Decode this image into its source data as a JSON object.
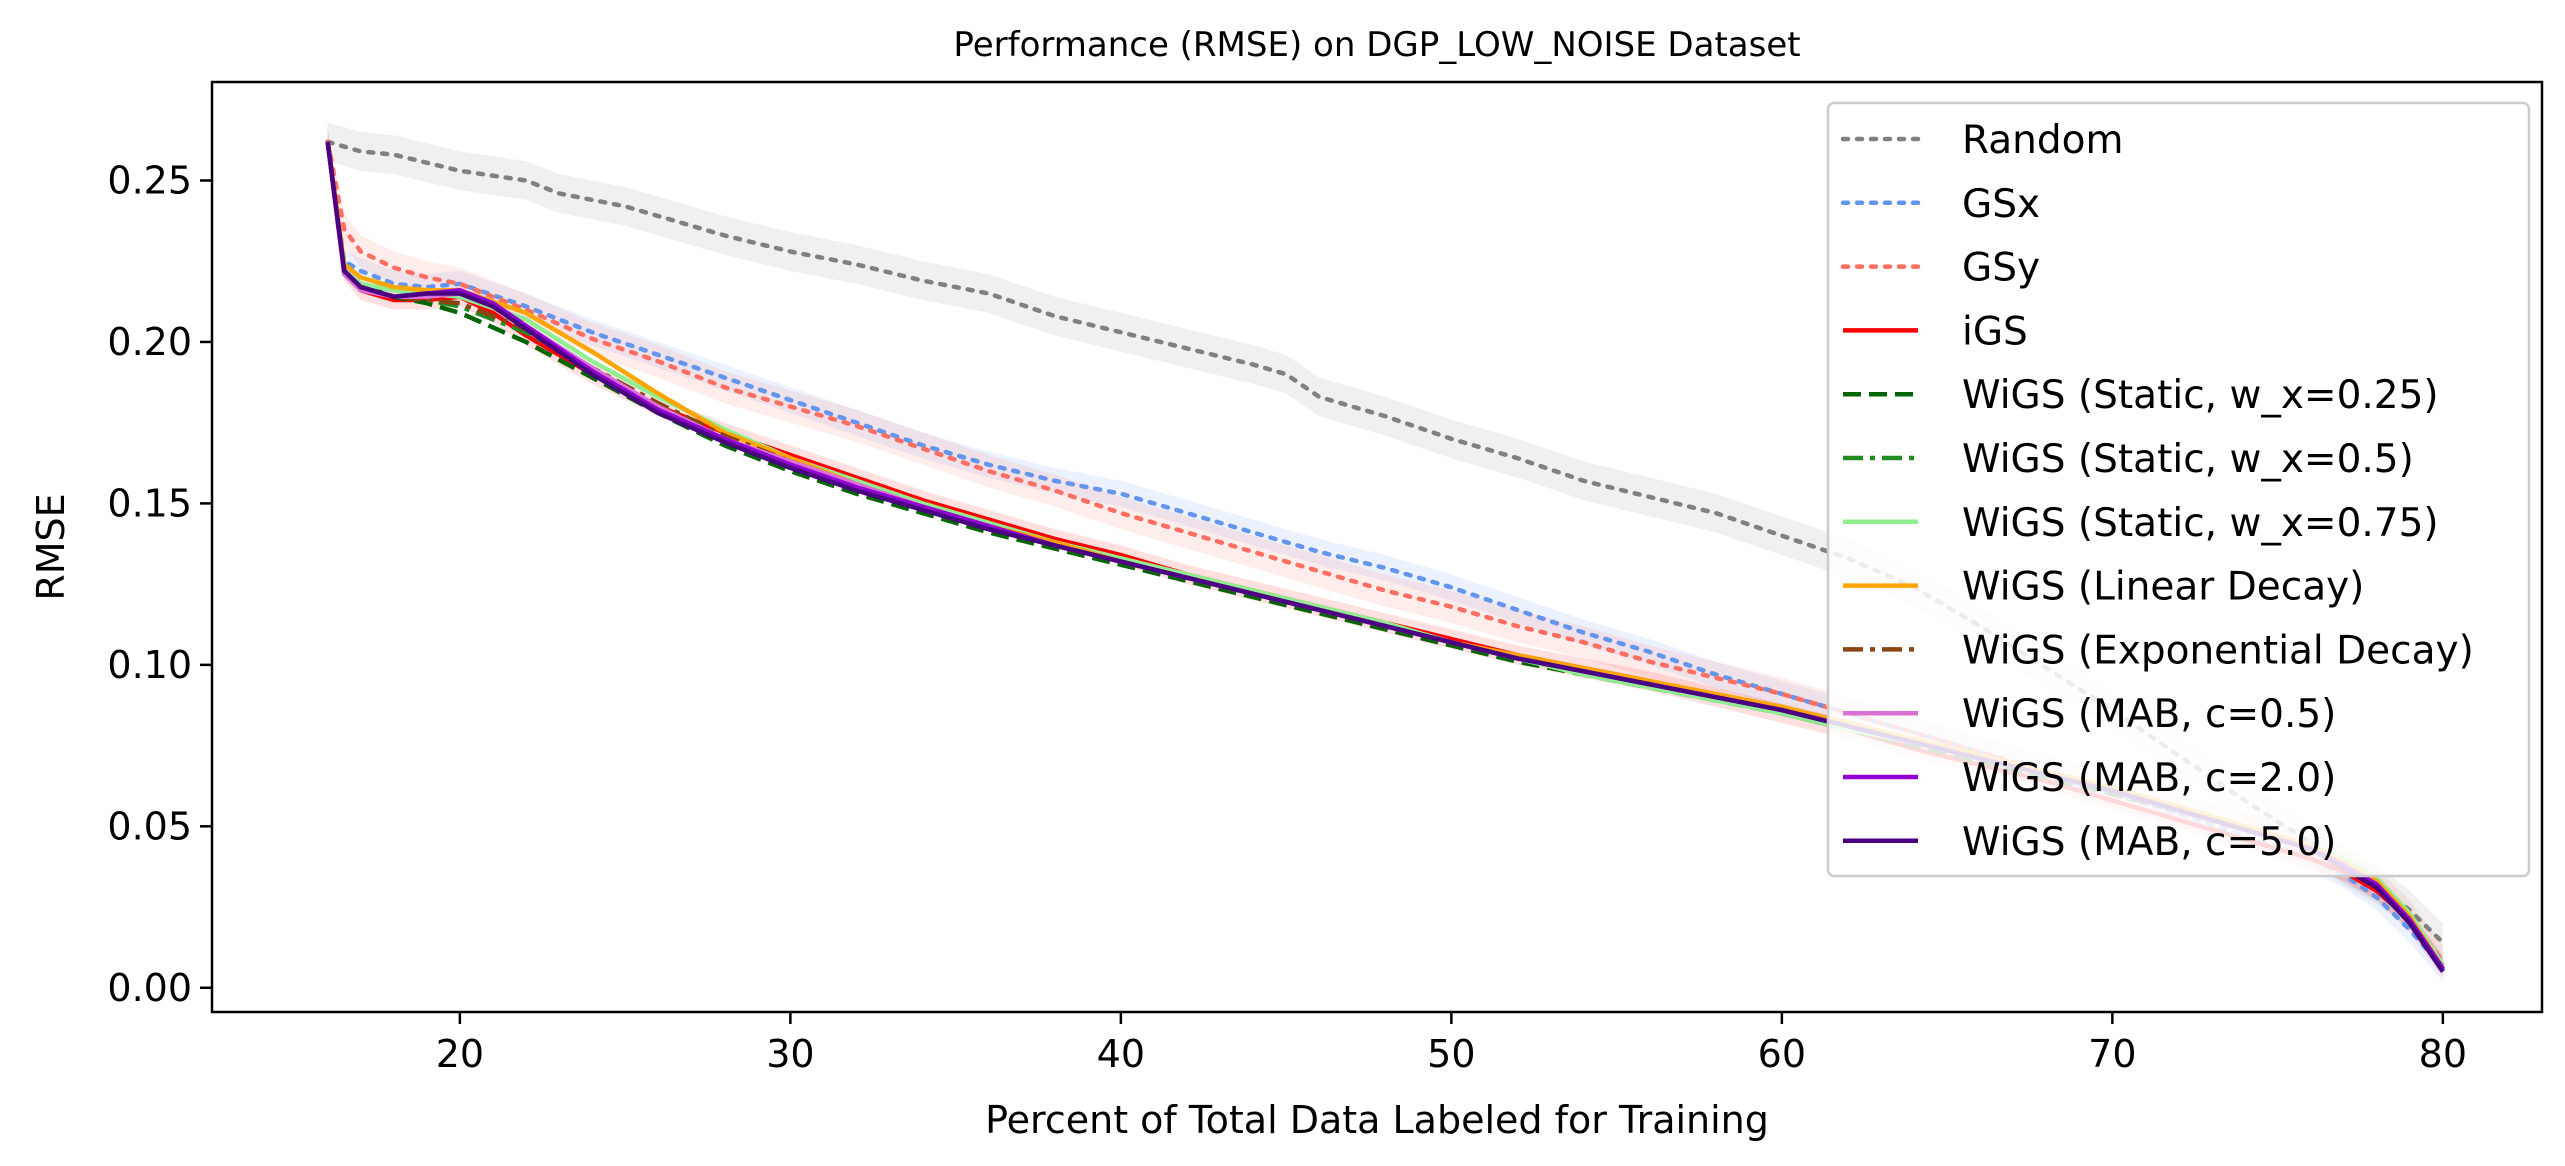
{
  "chart_data": {
    "type": "line",
    "title": "Performance (RMSE) on DGP_LOW_NOISE Dataset",
    "xlabel": "Percent of Total Data Labeled for Training",
    "ylabel": "RMSE",
    "xlim": [
      12.5,
      83
    ],
    "ylim": [
      -0.0075,
      0.2805
    ],
    "x_ticks": [
      20,
      30,
      40,
      50,
      60,
      70,
      80
    ],
    "x_tick_labels": [
      "20",
      "30",
      "40",
      "50",
      "60",
      "70",
      "80"
    ],
    "y_ticks": [
      0.0,
      0.05,
      0.1,
      0.15,
      0.2,
      0.25
    ],
    "y_tick_labels": [
      "0.00",
      "0.05",
      "0.10",
      "0.15",
      "0.20",
      "0.25"
    ],
    "grid": false,
    "legend_position": "upper right",
    "series": [
      {
        "name": "Random",
        "color": "#808080",
        "style": "dotted",
        "band": 0.006,
        "x": [
          16,
          17,
          18,
          20,
          22,
          23,
          25,
          26,
          28,
          30,
          32,
          34,
          36,
          38,
          40,
          42,
          44,
          45,
          46,
          48,
          50,
          52,
          54,
          56,
          58,
          60,
          62,
          64,
          66,
          68,
          70,
          72,
          74,
          76,
          77,
          78,
          79,
          79.5,
          80
        ],
        "y": [
          0.262,
          0.259,
          0.258,
          0.253,
          0.25,
          0.246,
          0.242,
          0.239,
          0.233,
          0.228,
          0.224,
          0.219,
          0.215,
          0.208,
          0.203,
          0.198,
          0.193,
          0.19,
          0.183,
          0.177,
          0.17,
          0.164,
          0.157,
          0.152,
          0.147,
          0.14,
          0.133,
          0.124,
          0.112,
          0.099,
          0.086,
          0.072,
          0.058,
          0.045,
          0.038,
          0.032,
          0.024,
          0.019,
          0.014
        ]
      },
      {
        "name": "GSx",
        "color": "#6495ED",
        "style": "dotted",
        "band": 0.004,
        "x": [
          16,
          16.5,
          17,
          18,
          19,
          20,
          22,
          24,
          26,
          28,
          30,
          32,
          34,
          36,
          38,
          40,
          42,
          44,
          46,
          48,
          50,
          52,
          54,
          56,
          58,
          60,
          62,
          64,
          66,
          68,
          70,
          72,
          74,
          76,
          77,
          78,
          79,
          80
        ],
        "y": [
          0.262,
          0.225,
          0.222,
          0.218,
          0.217,
          0.218,
          0.211,
          0.203,
          0.196,
          0.189,
          0.182,
          0.175,
          0.168,
          0.162,
          0.157,
          0.153,
          0.147,
          0.141,
          0.135,
          0.13,
          0.124,
          0.117,
          0.11,
          0.104,
          0.097,
          0.091,
          0.085,
          0.079,
          0.073,
          0.066,
          0.06,
          0.054,
          0.047,
          0.04,
          0.035,
          0.028,
          0.018,
          0.006
        ]
      },
      {
        "name": "GSy",
        "color": "#FF6F61",
        "style": "dotted",
        "band": 0.005,
        "x": [
          16,
          16.5,
          17,
          18,
          19,
          20,
          22,
          24,
          26,
          28,
          30,
          32,
          34,
          36,
          38,
          40,
          42,
          44,
          46,
          48,
          50,
          52,
          54,
          56,
          58,
          60,
          62,
          64,
          66,
          68,
          70,
          72,
          74,
          76,
          77,
          78,
          79,
          80
        ],
        "y": [
          0.262,
          0.235,
          0.228,
          0.223,
          0.22,
          0.218,
          0.21,
          0.201,
          0.194,
          0.186,
          0.18,
          0.174,
          0.167,
          0.16,
          0.154,
          0.147,
          0.141,
          0.135,
          0.129,
          0.123,
          0.118,
          0.112,
          0.107,
          0.101,
          0.096,
          0.091,
          0.085,
          0.079,
          0.073,
          0.067,
          0.061,
          0.055,
          0.049,
          0.043,
          0.038,
          0.032,
          0.022,
          0.008
        ]
      },
      {
        "name": "iGS",
        "color": "#FF0000",
        "style": "solid",
        "band": 0.003,
        "x": [
          16,
          16.5,
          17,
          18,
          19,
          20,
          21,
          22,
          24,
          26,
          28,
          30,
          32,
          34,
          36,
          38,
          40,
          42,
          44,
          46,
          48,
          50,
          52,
          54,
          56,
          58,
          60,
          62,
          64,
          66,
          68,
          70,
          72,
          74,
          76,
          77,
          78,
          79,
          80
        ],
        "y": [
          0.262,
          0.222,
          0.216,
          0.213,
          0.213,
          0.214,
          0.209,
          0.202,
          0.19,
          0.18,
          0.172,
          0.165,
          0.158,
          0.151,
          0.145,
          0.139,
          0.134,
          0.128,
          0.123,
          0.118,
          0.113,
          0.108,
          0.103,
          0.099,
          0.095,
          0.09,
          0.085,
          0.08,
          0.074,
          0.069,
          0.064,
          0.058,
          0.052,
          0.046,
          0.04,
          0.036,
          0.03,
          0.021,
          0.007
        ]
      },
      {
        "name": "WiGS (Static, w_x=0.25)",
        "color": "#006400",
        "style": "dashed",
        "band": 0,
        "x": [
          16,
          16.5,
          17,
          18,
          19,
          20,
          22,
          24,
          26,
          28,
          30,
          32,
          34,
          36,
          38,
          40,
          42,
          44,
          46,
          48,
          50,
          52,
          54,
          56,
          58,
          60,
          62,
          64,
          66,
          68,
          70,
          72,
          74,
          76,
          77,
          78,
          79,
          80
        ],
        "y": [
          0.262,
          0.222,
          0.218,
          0.214,
          0.212,
          0.209,
          0.2,
          0.189,
          0.178,
          0.168,
          0.16,
          0.153,
          0.147,
          0.141,
          0.136,
          0.131,
          0.126,
          0.121,
          0.116,
          0.111,
          0.106,
          0.101,
          0.097,
          0.093,
          0.089,
          0.085,
          0.08,
          0.075,
          0.07,
          0.065,
          0.06,
          0.055,
          0.049,
          0.043,
          0.038,
          0.032,
          0.022,
          0.007
        ]
      },
      {
        "name": "WiGS (Static, w_x=0.5)",
        "color": "#228B22",
        "style": "dashdot",
        "band": 0,
        "x": [
          16,
          16.5,
          17,
          18,
          19,
          20,
          22,
          24,
          26,
          28,
          30,
          32,
          34,
          36,
          38,
          40,
          42,
          44,
          46,
          48,
          50,
          52,
          54,
          56,
          58,
          60,
          62,
          64,
          66,
          68,
          70,
          72,
          74,
          76,
          77,
          78,
          79,
          80
        ],
        "y": [
          0.262,
          0.221,
          0.217,
          0.214,
          0.213,
          0.211,
          0.203,
          0.192,
          0.181,
          0.171,
          0.162,
          0.155,
          0.148,
          0.142,
          0.137,
          0.132,
          0.127,
          0.122,
          0.117,
          0.112,
          0.107,
          0.102,
          0.098,
          0.094,
          0.09,
          0.086,
          0.081,
          0.076,
          0.071,
          0.066,
          0.061,
          0.056,
          0.05,
          0.044,
          0.039,
          0.033,
          0.022,
          0.007
        ]
      },
      {
        "name": "WiGS (Static, w_x=0.75)",
        "color": "#90EE90",
        "style": "solid",
        "band": 0,
        "x": [
          16,
          16.5,
          17,
          18,
          19,
          20,
          22,
          24,
          26,
          28,
          30,
          32,
          34,
          36,
          38,
          40,
          42,
          44,
          46,
          48,
          50,
          52,
          54,
          56,
          58,
          60,
          62,
          64,
          66,
          68,
          70,
          72,
          74,
          76,
          77,
          78,
          79,
          80
        ],
        "y": [
          0.262,
          0.222,
          0.218,
          0.216,
          0.215,
          0.214,
          0.207,
          0.194,
          0.183,
          0.173,
          0.164,
          0.157,
          0.15,
          0.144,
          0.138,
          0.133,
          0.128,
          0.123,
          0.118,
          0.113,
          0.107,
          0.102,
          0.097,
          0.093,
          0.089,
          0.085,
          0.08,
          0.076,
          0.071,
          0.066,
          0.061,
          0.056,
          0.05,
          0.044,
          0.04,
          0.034,
          0.023,
          0.007
        ]
      },
      {
        "name": "WiGS (Linear Decay)",
        "color": "#FFA500",
        "style": "solid",
        "band": 0,
        "x": [
          16,
          16.5,
          17,
          18,
          19,
          20,
          22,
          24,
          26,
          28,
          30,
          32,
          34,
          36,
          38,
          40,
          42,
          44,
          46,
          48,
          50,
          52,
          54,
          56,
          58,
          60,
          62,
          64,
          66,
          68,
          70,
          72,
          74,
          76,
          77,
          78,
          79,
          80
        ],
        "y": [
          0.262,
          0.224,
          0.22,
          0.217,
          0.216,
          0.216,
          0.209,
          0.197,
          0.184,
          0.172,
          0.164,
          0.156,
          0.149,
          0.143,
          0.138,
          0.132,
          0.127,
          0.122,
          0.117,
          0.112,
          0.107,
          0.103,
          0.099,
          0.095,
          0.091,
          0.087,
          0.082,
          0.077,
          0.072,
          0.067,
          0.062,
          0.056,
          0.05,
          0.044,
          0.039,
          0.033,
          0.022,
          0.006
        ]
      },
      {
        "name": "WiGS (Exponential Decay)",
        "color": "#8B4513",
        "style": "dashdot",
        "band": 0,
        "x": [
          16,
          16.5,
          17,
          18,
          19,
          20,
          22,
          24,
          26,
          28,
          30,
          32,
          34,
          36,
          38,
          40,
          42,
          44,
          46,
          48,
          50,
          52,
          54,
          56,
          58,
          60,
          62,
          64,
          66,
          68,
          70,
          72,
          74,
          76,
          77,
          78,
          79,
          80
        ],
        "y": [
          0.262,
          0.222,
          0.217,
          0.214,
          0.213,
          0.212,
          0.204,
          0.192,
          0.181,
          0.171,
          0.163,
          0.155,
          0.148,
          0.142,
          0.137,
          0.132,
          0.127,
          0.122,
          0.117,
          0.112,
          0.107,
          0.102,
          0.098,
          0.094,
          0.09,
          0.086,
          0.081,
          0.076,
          0.071,
          0.066,
          0.061,
          0.055,
          0.049,
          0.043,
          0.038,
          0.032,
          0.021,
          0.006
        ]
      },
      {
        "name": "WiGS (MAB, c=0.5)",
        "color": "#DA70D6",
        "style": "solid",
        "band": 0,
        "x": [
          16,
          16.5,
          17,
          18,
          19,
          20,
          21,
          22,
          24,
          26,
          28,
          30,
          32,
          34,
          36,
          38,
          40,
          42,
          44,
          46,
          48,
          50,
          52,
          54,
          56,
          58,
          60,
          62,
          64,
          66,
          68,
          70,
          72,
          74,
          76,
          77,
          78,
          79,
          80
        ],
        "y": [
          0.262,
          0.221,
          0.216,
          0.214,
          0.214,
          0.215,
          0.211,
          0.205,
          0.192,
          0.18,
          0.17,
          0.163,
          0.156,
          0.149,
          0.143,
          0.137,
          0.132,
          0.127,
          0.122,
          0.117,
          0.112,
          0.107,
          0.102,
          0.098,
          0.094,
          0.09,
          0.086,
          0.081,
          0.076,
          0.071,
          0.066,
          0.061,
          0.055,
          0.049,
          0.043,
          0.038,
          0.032,
          0.021,
          0.006
        ]
      },
      {
        "name": "WiGS (MAB, c=2.0)",
        "color": "#9400D3",
        "style": "solid",
        "band": 0,
        "x": [
          16,
          16.5,
          17,
          18,
          19,
          20,
          21,
          22,
          24,
          26,
          28,
          30,
          32,
          34,
          36,
          38,
          40,
          42,
          44,
          46,
          48,
          50,
          52,
          54,
          56,
          58,
          60,
          62,
          64,
          66,
          68,
          70,
          72,
          74,
          76,
          77,
          78,
          79,
          80
        ],
        "y": [
          0.262,
          0.222,
          0.217,
          0.214,
          0.215,
          0.216,
          0.212,
          0.205,
          0.191,
          0.179,
          0.17,
          0.162,
          0.155,
          0.149,
          0.143,
          0.137,
          0.132,
          0.127,
          0.122,
          0.117,
          0.112,
          0.107,
          0.102,
          0.098,
          0.094,
          0.09,
          0.086,
          0.081,
          0.076,
          0.071,
          0.066,
          0.061,
          0.055,
          0.049,
          0.043,
          0.038,
          0.032,
          0.021,
          0.006
        ]
      },
      {
        "name": "WiGS (MAB, c=5.0)",
        "color": "#4B0082",
        "style": "solid",
        "band": 0,
        "x": [
          16,
          16.5,
          17,
          18,
          19,
          20,
          21,
          22,
          24,
          26,
          28,
          30,
          32,
          34,
          36,
          38,
          40,
          42,
          44,
          46,
          48,
          50,
          52,
          54,
          56,
          58,
          60,
          62,
          64,
          66,
          68,
          70,
          72,
          74,
          76,
          77,
          78,
          79,
          80
        ],
        "y": [
          0.262,
          0.222,
          0.217,
          0.214,
          0.215,
          0.215,
          0.211,
          0.204,
          0.19,
          0.178,
          0.169,
          0.161,
          0.154,
          0.148,
          0.142,
          0.137,
          0.132,
          0.127,
          0.122,
          0.117,
          0.112,
          0.107,
          0.102,
          0.098,
          0.094,
          0.09,
          0.086,
          0.081,
          0.076,
          0.071,
          0.066,
          0.061,
          0.055,
          0.049,
          0.043,
          0.037,
          0.031,
          0.02,
          0.005
        ]
      }
    ]
  }
}
